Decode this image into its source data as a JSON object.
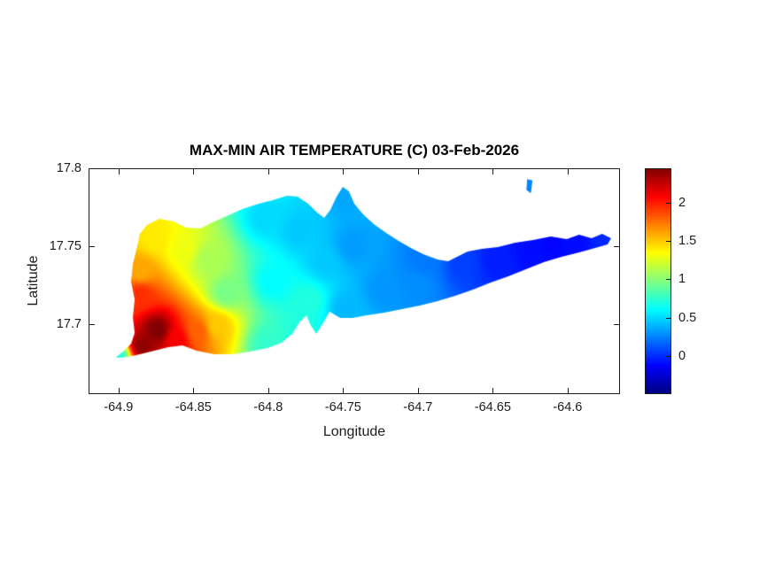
{
  "figure": {
    "background": "#ffffff"
  },
  "chart_data": {
    "type": "heatmap",
    "subtype": "filled-contour-geo-map",
    "title": "MAX-MIN AIR TEMPERATURE (C) 03-Feb-2026",
    "xlabel": "Longitude",
    "ylabel": "Latitude",
    "region_name": "st-croix-island",
    "grid": false,
    "legend_position": "colorbar-right",
    "xlim": [
      -64.92,
      -64.565
    ],
    "ylim": [
      17.655,
      17.8
    ],
    "xticks": [
      -64.9,
      -64.85,
      -64.8,
      -64.75,
      -64.7,
      -64.65,
      -64.6
    ],
    "xtick_labels": [
      "-64.9",
      "-64.85",
      "-64.8",
      "-64.75",
      "-64.7",
      "-64.65",
      "-64.6"
    ],
    "yticks": [
      17.8,
      17.75,
      17.7
    ],
    "ytick_labels": [
      "17.8",
      "17.75",
      "17.7"
    ],
    "colormap": "jet",
    "caxis": [
      -0.5,
      2.45
    ],
    "colorbar_ticks": [
      2,
      1.5,
      1,
      0.5,
      0
    ],
    "colorbar_tick_labels": [
      "2",
      "1.5",
      "1",
      "0.5",
      "0"
    ],
    "island_polygon": [
      [
        -64.902,
        17.6783
      ],
      [
        -64.8963,
        17.6829
      ],
      [
        -64.8916,
        17.6874
      ],
      [
        -64.8892,
        17.6942
      ],
      [
        -64.8904,
        17.7045
      ],
      [
        -64.8892,
        17.7158
      ],
      [
        -64.8916,
        17.7272
      ],
      [
        -64.8904,
        17.7386
      ],
      [
        -64.8875,
        17.75
      ],
      [
        -64.8857,
        17.7579
      ],
      [
        -64.881,
        17.7636
      ],
      [
        -64.8727,
        17.7676
      ],
      [
        -64.8632,
        17.7659
      ],
      [
        -64.8549,
        17.7619
      ],
      [
        -64.8455,
        17.7613
      ],
      [
        -64.836,
        17.7659
      ],
      [
        -64.8265,
        17.7698
      ],
      [
        -64.8171,
        17.7738
      ],
      [
        -64.8064,
        17.7773
      ],
      [
        -64.7969,
        17.7795
      ],
      [
        -64.7875,
        17.7824
      ],
      [
        -64.7804,
        17.7818
      ],
      [
        -64.7733,
        17.7773
      ],
      [
        -64.7673,
        17.7716
      ],
      [
        -64.7626,
        17.7681
      ],
      [
        -64.7585,
        17.7733
      ],
      [
        -64.7543,
        17.7818
      ],
      [
        -64.7502,
        17.7881
      ],
      [
        -64.7461,
        17.7852
      ],
      [
        -64.7425,
        17.7773
      ],
      [
        -64.7366,
        17.7704
      ],
      [
        -64.7295,
        17.7642
      ],
      [
        -64.7212,
        17.7585
      ],
      [
        -64.7129,
        17.7534
      ],
      [
        -64.7047,
        17.7488
      ],
      [
        -64.6964,
        17.7448
      ],
      [
        -64.6869,
        17.7414
      ],
      [
        -64.6798,
        17.7403
      ],
      [
        -64.6739,
        17.7431
      ],
      [
        -64.6668,
        17.7466
      ],
      [
        -64.6573,
        17.7483
      ],
      [
        -64.6467,
        17.7494
      ],
      [
        -64.6349,
        17.7522
      ],
      [
        -64.623,
        17.7539
      ],
      [
        -64.6112,
        17.7562
      ],
      [
        -64.6006,
        17.7545
      ],
      [
        -64.5923,
        17.7573
      ],
      [
        -64.584,
        17.7551
      ],
      [
        -64.5769,
        17.7579
      ],
      [
        -64.571,
        17.7551
      ],
      [
        -64.5733,
        17.7511
      ],
      [
        -64.5816,
        17.7488
      ],
      [
        -64.5923,
        17.746
      ],
      [
        -64.6041,
        17.7431
      ],
      [
        -64.6159,
        17.7397
      ],
      [
        -64.6278,
        17.7352
      ],
      [
        -64.6396,
        17.7306
      ],
      [
        -64.6514,
        17.7266
      ],
      [
        -64.6632,
        17.7221
      ],
      [
        -64.6751,
        17.7181
      ],
      [
        -64.6869,
        17.7147
      ],
      [
        -64.6987,
        17.7118
      ],
      [
        -64.7106,
        17.7096
      ],
      [
        -64.7224,
        17.7073
      ],
      [
        -64.7342,
        17.7056
      ],
      [
        -64.7437,
        17.7039
      ],
      [
        -64.7519,
        17.7039
      ],
      [
        -64.759,
        17.7079
      ],
      [
        -64.7638,
        17.6999
      ],
      [
        -64.7679,
        17.6937
      ],
      [
        -64.7721,
        17.6999
      ],
      [
        -64.7744,
        17.7056
      ],
      [
        -64.7792,
        17.7011
      ],
      [
        -64.7839,
        17.6937
      ],
      [
        -64.791,
        17.688
      ],
      [
        -64.8005,
        17.6846
      ],
      [
        -64.8123,
        17.6823
      ],
      [
        -64.8241,
        17.6806
      ],
      [
        -64.836,
        17.6806
      ],
      [
        -64.8478,
        17.6829
      ],
      [
        -64.8573,
        17.6863
      ],
      [
        -64.8667,
        17.6852
      ],
      [
        -64.8762,
        17.6829
      ],
      [
        -64.8857,
        17.6806
      ],
      [
        -64.8939,
        17.6789
      ]
    ],
    "islets": [
      [
        [
          -64.627,
          17.793
        ],
        [
          -64.6235,
          17.7922
        ],
        [
          -64.6245,
          17.784
        ],
        [
          -64.6275,
          17.786
        ]
      ]
    ],
    "temperature_points": [
      [
        -64.874,
        17.696,
        2.45
      ],
      [
        -64.884,
        17.686,
        2.4
      ],
      [
        -64.861,
        17.69,
        2.1
      ],
      [
        -64.847,
        17.695,
        1.8
      ],
      [
        -64.885,
        17.719,
        1.95
      ],
      [
        -64.885,
        17.734,
        1.6
      ],
      [
        -64.876,
        17.755,
        1.4
      ],
      [
        -64.857,
        17.748,
        1.3
      ],
      [
        -64.84,
        17.741,
        1.1
      ],
      [
        -64.828,
        17.72,
        0.95
      ],
      [
        -64.834,
        17.699,
        1.5
      ],
      [
        -64.901,
        17.679,
        0.7
      ],
      [
        -64.802,
        17.768,
        0.5
      ],
      [
        -64.797,
        17.727,
        0.6
      ],
      [
        -64.8,
        17.687,
        0.75
      ],
      [
        -64.773,
        17.715,
        0.7
      ],
      [
        -64.779,
        17.692,
        0.7
      ],
      [
        -64.762,
        17.74,
        0.45
      ],
      [
        -64.78,
        17.76,
        0.45
      ],
      [
        -64.748,
        17.783,
        0.35
      ],
      [
        -64.744,
        17.75,
        0.32
      ],
      [
        -64.748,
        17.71,
        0.4
      ],
      [
        -64.723,
        17.722,
        0.3
      ],
      [
        -64.7,
        17.725,
        0.28
      ],
      [
        -64.695,
        17.74,
        0.22
      ],
      [
        -64.67,
        17.738,
        0.05
      ],
      [
        -64.648,
        17.741,
        -0.05
      ],
      [
        -64.625,
        17.747,
        -0.1
      ],
      [
        -64.61,
        17.752,
        -0.12
      ],
      [
        -64.595,
        17.751,
        -0.1
      ],
      [
        -64.575,
        17.754,
        -0.02
      ],
      [
        -64.625,
        17.789,
        0.25
      ]
    ]
  }
}
